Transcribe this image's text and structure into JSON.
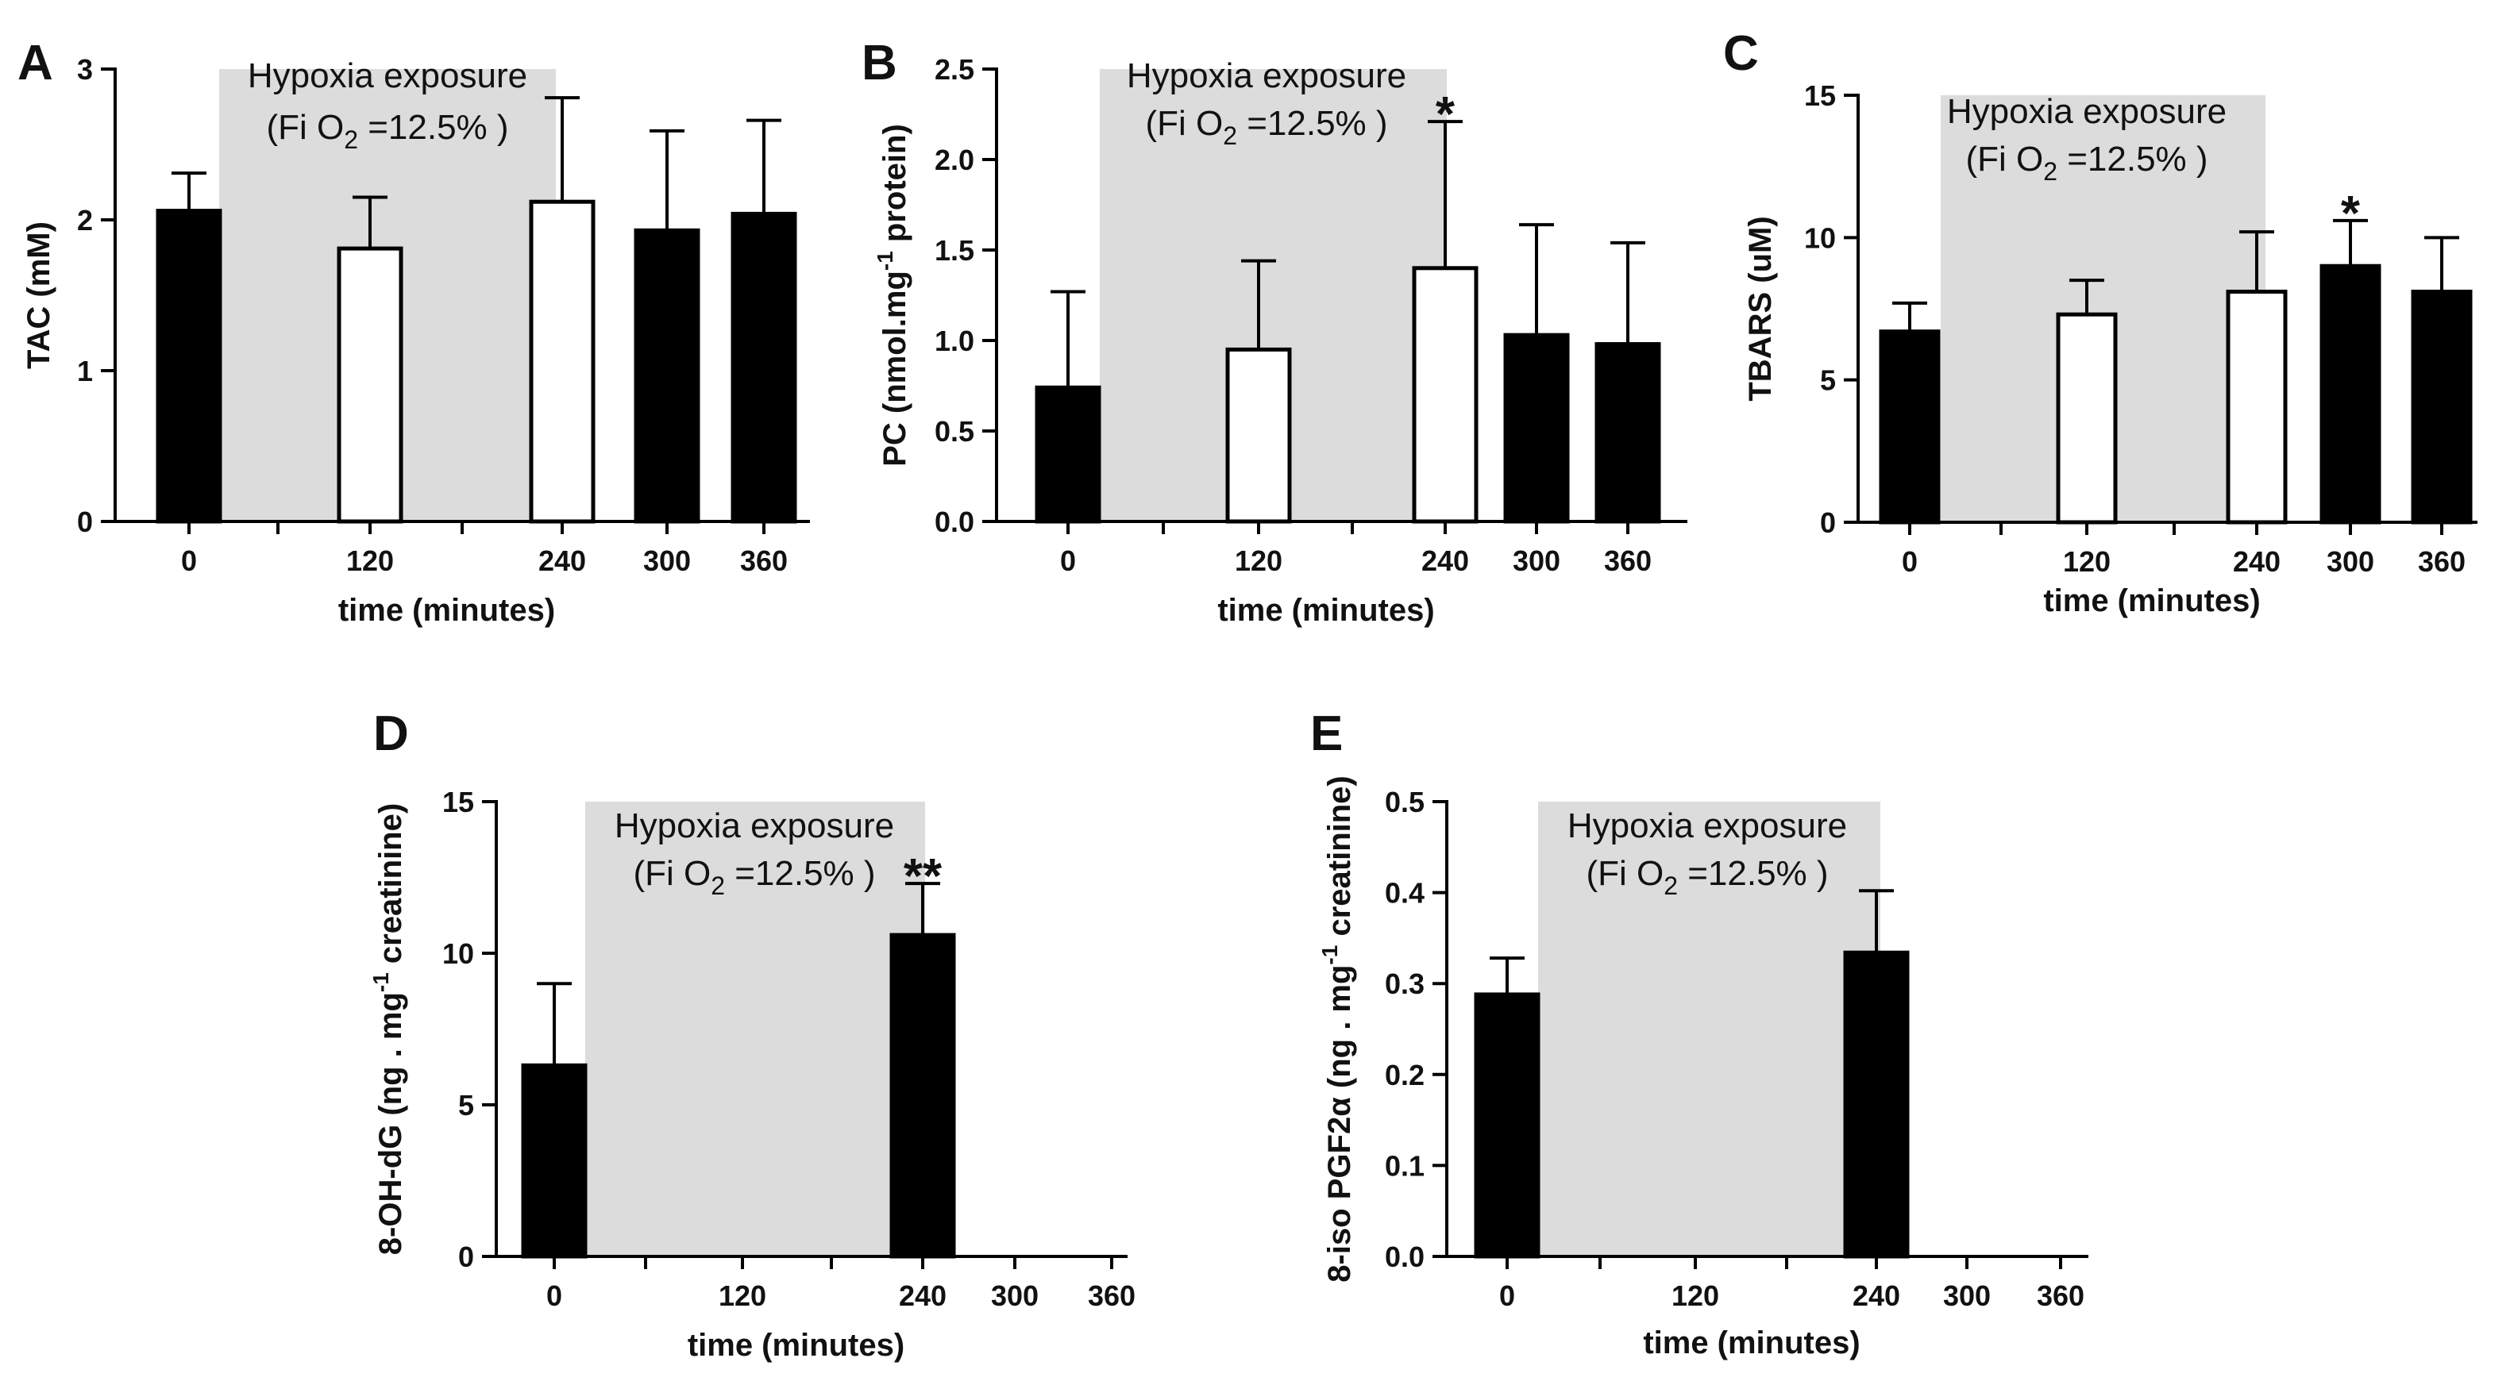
{
  "colors": {
    "shade": "#dcdcdc",
    "filled_bar": "#000000",
    "open_bar": "#ffffff",
    "axis": "#000000"
  },
  "shade_text": {
    "line1": "Hypoxia exposure",
    "line2_prefix": "(Fi O",
    "line2_sub": "2",
    "line2_suffix": " =12.5% )"
  },
  "chart_data": [
    {
      "panel": "A",
      "type": "bar",
      "categories": [
        "0",
        "120",
        "240",
        "300",
        "360"
      ],
      "values": [
        2.06,
        1.81,
        2.12,
        1.93,
        2.04
      ],
      "errors": [
        0.25,
        0.34,
        0.69,
        0.66,
        0.62
      ],
      "styles": [
        "filled",
        "open",
        "open",
        "filled",
        "filled"
      ],
      "ylim": [
        0,
        3
      ],
      "yticks": [
        "0",
        "1",
        "2",
        "3"
      ],
      "ylabel": "TAC (mM)",
      "xlabel": "time (minutes)",
      "hypoxia_window": [
        0,
        240
      ],
      "significance": []
    },
    {
      "panel": "B",
      "type": "bar",
      "categories": [
        "0",
        "120",
        "240",
        "300",
        "360"
      ],
      "values": [
        0.74,
        0.95,
        1.4,
        1.03,
        0.98
      ],
      "errors": [
        0.53,
        0.49,
        0.81,
        0.61,
        0.56
      ],
      "styles": [
        "filled",
        "open",
        "open",
        "filled",
        "filled"
      ],
      "ylim": [
        0,
        2.5
      ],
      "yticks": [
        "0.0",
        "0.5",
        "1.0",
        "1.5",
        "2.0",
        "2.5"
      ],
      "ylabel_main": "PC (nmol.mg",
      "ylabel_sup": "-1",
      "ylabel_tail": " protein)",
      "xlabel": "time (minutes)",
      "hypoxia_window": [
        0,
        240
      ],
      "significance": [
        {
          "category": "240",
          "mark": "*"
        }
      ]
    },
    {
      "panel": "C",
      "type": "bar",
      "categories": [
        "0",
        "120",
        "240",
        "300",
        "360"
      ],
      "values": [
        6.7,
        7.3,
        8.1,
        9.0,
        8.1
      ],
      "errors": [
        1.0,
        1.2,
        2.1,
        1.6,
        1.9
      ],
      "styles": [
        "filled",
        "open",
        "open",
        "filled",
        "filled"
      ],
      "ylim": [
        0,
        15
      ],
      "yticks": [
        "0",
        "5",
        "10",
        "15"
      ],
      "ylabel": "TBARS (uM)",
      "xlabel": "time (minutes)",
      "hypoxia_window": [
        0,
        240
      ],
      "significance": [
        {
          "category": "300",
          "mark": "*"
        }
      ]
    },
    {
      "panel": "D",
      "type": "bar",
      "categories": [
        "0",
        "120",
        "240",
        "300",
        "360"
      ],
      "values": [
        6.3,
        null,
        10.6,
        null,
        null
      ],
      "errors": [
        2.7,
        null,
        1.7,
        null,
        null
      ],
      "styles": [
        "filled",
        "none",
        "filled",
        "none",
        "none"
      ],
      "ylim": [
        0,
        15
      ],
      "yticks": [
        "0",
        "5",
        "10",
        "15"
      ],
      "ylabel_main": "8-OH-dG (ng . mg",
      "ylabel_sup": "-1",
      "ylabel_tail": " creatinine)",
      "xlabel": "time (minutes)",
      "hypoxia_window": [
        0,
        240
      ],
      "significance": [
        {
          "category": "240",
          "mark": "**"
        }
      ]
    },
    {
      "panel": "E",
      "type": "bar",
      "categories": [
        "0",
        "120",
        "240",
        "300",
        "360"
      ],
      "values": [
        0.288,
        null,
        0.334,
        null,
        null
      ],
      "errors": [
        0.04,
        null,
        0.068,
        null,
        null
      ],
      "styles": [
        "filled",
        "none",
        "filled",
        "none",
        "none"
      ],
      "ylim": [
        0,
        0.5
      ],
      "yticks": [
        "0.0",
        "0.1",
        "0.2",
        "0.3",
        "0.4",
        "0.5"
      ],
      "ylabel_main": "8-iso PGF2α (ng . mg",
      "ylabel_sup": "-1",
      "ylabel_tail": " creatinine)",
      "xlabel": "time (minutes)",
      "hypoxia_window": [
        0,
        240
      ],
      "significance": []
    }
  ]
}
